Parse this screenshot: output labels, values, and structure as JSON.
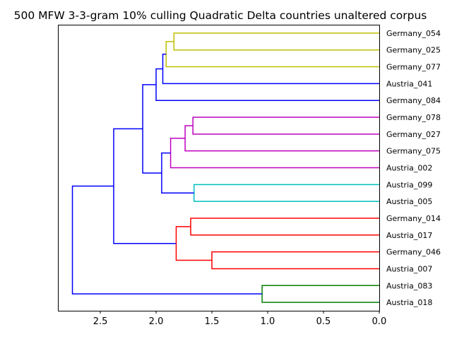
{
  "chart_data": {
    "type": "dendrogram",
    "title": "500 MFW 3-3-gram 10% culling Quadratic Delta countries unaltered corpus",
    "orientation": "left",
    "xlim": [
      2.88,
      0.0
    ],
    "x_ticks": [
      2.5,
      2.0,
      1.5,
      1.0,
      0.5,
      0.0
    ],
    "x_tick_labels": [
      "2.5",
      "2.0",
      "1.5",
      "1.0",
      "0.5",
      "0.0"
    ],
    "leaves": [
      "Germany_054",
      "Germany_025",
      "Germany_077",
      "Austria_041",
      "Germany_084",
      "Germany_078",
      "Germany_027",
      "Germany_075",
      "Austria_002",
      "Austria_099",
      "Austria_005",
      "Germany_014",
      "Austria_017",
      "Germany_046",
      "Austria_007",
      "Austria_083",
      "Austria_018"
    ],
    "merges": [
      {
        "id": "n1",
        "children": [
          "Germany_054",
          "Germany_025"
        ],
        "height": 1.84,
        "color": "#bfbf00"
      },
      {
        "id": "n2",
        "children": [
          "n1",
          "Germany_077"
        ],
        "height": 1.91,
        "color": "#bfbf00"
      },
      {
        "id": "n3",
        "children": [
          "n2",
          "Austria_041"
        ],
        "height": 1.94,
        "color": "#0000ff"
      },
      {
        "id": "n4",
        "children": [
          "n3",
          "Germany_084"
        ],
        "height": 2.0,
        "color": "#0000ff"
      },
      {
        "id": "n5",
        "children": [
          "Germany_078",
          "Germany_027"
        ],
        "height": 1.67,
        "color": "#bf00bf"
      },
      {
        "id": "n6",
        "children": [
          "n5",
          "Germany_075"
        ],
        "height": 1.74,
        "color": "#bf00bf"
      },
      {
        "id": "n7",
        "children": [
          "n6",
          "Austria_002"
        ],
        "height": 1.87,
        "color": "#bf00bf"
      },
      {
        "id": "n8",
        "children": [
          "Austria_099",
          "Austria_005"
        ],
        "height": 1.66,
        "color": "#00bfbf"
      },
      {
        "id": "n9",
        "children": [
          "n7",
          "n8"
        ],
        "height": 1.95,
        "color": "#0000ff"
      },
      {
        "id": "n10",
        "children": [
          "n4",
          "n9"
        ],
        "height": 2.12,
        "color": "#0000ff"
      },
      {
        "id": "n11",
        "children": [
          "Germany_014",
          "Austria_017"
        ],
        "height": 1.69,
        "color": "#ff0000"
      },
      {
        "id": "n12",
        "children": [
          "Germany_046",
          "Austria_007"
        ],
        "height": 1.5,
        "color": "#ff0000"
      },
      {
        "id": "n13",
        "children": [
          "n11",
          "n12"
        ],
        "height": 1.82,
        "color": "#ff0000"
      },
      {
        "id": "n14",
        "children": [
          "n10",
          "n13"
        ],
        "height": 2.38,
        "color": "#0000ff"
      },
      {
        "id": "n15",
        "children": [
          "Austria_083",
          "Austria_018"
        ],
        "height": 1.05,
        "color": "#008000"
      },
      {
        "id": "n16",
        "children": [
          "n14",
          "n15"
        ],
        "height": 2.75,
        "color": "#0000ff"
      }
    ]
  }
}
